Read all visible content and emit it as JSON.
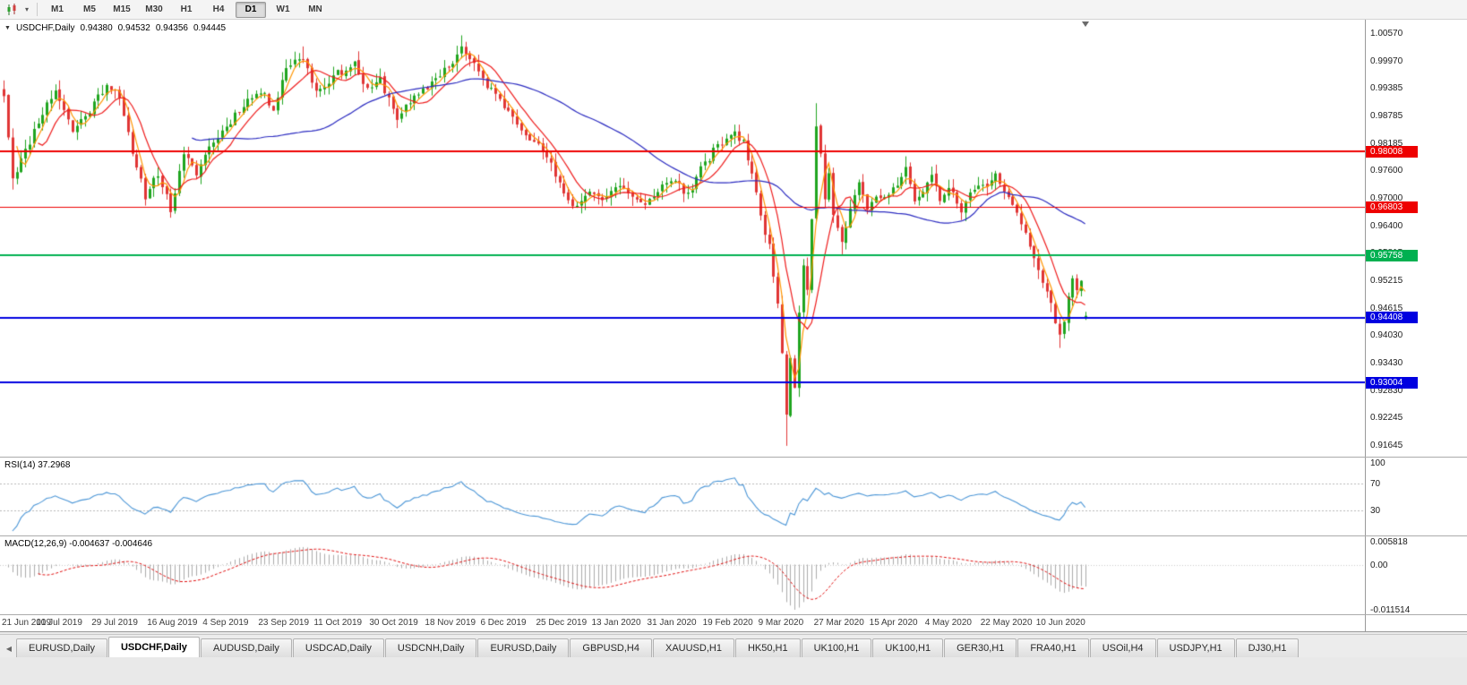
{
  "toolbar": {
    "chart_type_icon": "candlestick-chart-icon",
    "dropdown_icon": "chevron-down-icon",
    "timeframes": [
      "M1",
      "M5",
      "M15",
      "M30",
      "H1",
      "H4",
      "D1",
      "W1",
      "MN"
    ],
    "active_timeframe": "D1"
  },
  "quote_bar": {
    "collapse_icon": "triangle-down-icon",
    "symbol_label": "USDCHF,Daily",
    "open": "0.94380",
    "high": "0.94532",
    "low": "0.94356",
    "close": "0.94445"
  },
  "chart_data": {
    "type": "candlestick",
    "title": "USDCHF,Daily",
    "candles_total": 254,
    "ylim": [
      0.91395,
      1.0082
    ],
    "noise_seed": 11,
    "noise_amp": 0.0009,
    "colors": {
      "up": "#1fa51f",
      "down": "#e03535"
    },
    "close_anchors": [
      [
        0,
        0.9925
      ],
      [
        2,
        0.9745
      ],
      [
        5,
        0.98
      ],
      [
        8,
        0.9868
      ],
      [
        12,
        0.9935
      ],
      [
        16,
        0.9845
      ],
      [
        20,
        0.989
      ],
      [
        24,
        0.9948
      ],
      [
        27,
        0.9925
      ],
      [
        30,
        0.979
      ],
      [
        33,
        0.9705
      ],
      [
        36,
        0.9755
      ],
      [
        39,
        0.9675
      ],
      [
        42,
        0.979
      ],
      [
        45,
        0.9755
      ],
      [
        48,
        0.981
      ],
      [
        52,
        0.9855
      ],
      [
        56,
        0.9905
      ],
      [
        60,
        0.993
      ],
      [
        63,
        0.9895
      ],
      [
        66,
        0.9985
      ],
      [
        70,
        1.0005
      ],
      [
        73,
        0.993
      ],
      [
        76,
        0.9955
      ],
      [
        79,
        0.9975
      ],
      [
        82,
        0.999
      ],
      [
        85,
        0.993
      ],
      [
        88,
        0.9955
      ],
      [
        92,
        0.9875
      ],
      [
        95,
        0.9905
      ],
      [
        98,
        0.993
      ],
      [
        102,
        0.997
      ],
      [
        105,
        0.9995
      ],
      [
        107,
        1.0025
      ],
      [
        110,
        0.9985
      ],
      [
        113,
        0.9945
      ],
      [
        116,
        0.991
      ],
      [
        118,
        0.989
      ],
      [
        121,
        0.9855
      ],
      [
        124,
        0.982
      ],
      [
        127,
        0.979
      ],
      [
        131,
        0.9705
      ],
      [
        134,
        0.968
      ],
      [
        137,
        0.972
      ],
      [
        140,
        0.9695
      ],
      [
        144,
        0.973
      ],
      [
        147,
        0.97
      ],
      [
        150,
        0.968
      ],
      [
        153,
        0.972
      ],
      [
        157,
        0.974
      ],
      [
        160,
        0.9705
      ],
      [
        163,
        0.976
      ],
      [
        166,
        0.98
      ],
      [
        170,
        0.984
      ],
      [
        173,
        0.9825
      ],
      [
        175,
        0.975
      ],
      [
        177,
        0.966
      ],
      [
        179,
        0.9595
      ],
      [
        181,
        0.948
      ],
      [
        183,
        0.923
      ],
      [
        184,
        0.936
      ],
      [
        185,
        0.929
      ],
      [
        186,
        0.946
      ],
      [
        187,
        0.956
      ],
      [
        188,
        0.95
      ],
      [
        189,
        0.966
      ],
      [
        190,
        0.986
      ],
      [
        191,
        0.98
      ],
      [
        192,
        0.97
      ],
      [
        193,
        0.976
      ],
      [
        194,
        0.966
      ],
      [
        196,
        0.9605
      ],
      [
        198,
        0.968
      ],
      [
        200,
        0.9725
      ],
      [
        202,
        0.968
      ],
      [
        205,
        0.9705
      ],
      [
        209,
        0.9725
      ],
      [
        211,
        0.9765
      ],
      [
        213,
        0.9685
      ],
      [
        215,
        0.9715
      ],
      [
        217,
        0.9745
      ],
      [
        219,
        0.97
      ],
      [
        222,
        0.972
      ],
      [
        224,
        0.9665
      ],
      [
        226,
        0.9705
      ],
      [
        228,
        0.9735
      ],
      [
        230,
        0.9715
      ],
      [
        232,
        0.9745
      ],
      [
        235,
        0.9705
      ],
      [
        237,
        0.9665
      ],
      [
        239,
        0.9625
      ],
      [
        241,
        0.9565
      ],
      [
        243,
        0.952
      ],
      [
        245,
        0.947
      ],
      [
        247,
        0.9395
      ],
      [
        249,
        0.9485
      ],
      [
        250,
        0.952
      ],
      [
        251,
        0.9505
      ],
      [
        252,
        0.9515
      ],
      [
        253,
        0.94445
      ]
    ],
    "wick_overrides": [
      {
        "i": 2,
        "l": 0.9718
      },
      {
        "i": 39,
        "l": 0.9657
      },
      {
        "i": 70,
        "h": 1.0028
      },
      {
        "i": 107,
        "h": 1.0052
      },
      {
        "i": 183,
        "l": 0.9163
      },
      {
        "i": 190,
        "h": 0.9905
      },
      {
        "i": 196,
        "l": 0.9578
      },
      {
        "i": 211,
        "h": 0.979
      },
      {
        "i": 247,
        "l": 0.9375
      },
      {
        "i": 253,
        "o": 0.9438,
        "h": 0.94532,
        "l": 0.94356,
        "c": 0.94445
      }
    ],
    "moving_averages": [
      {
        "name": "MA fast",
        "period": 4,
        "color": "#ff9500"
      },
      {
        "name": "MA medium",
        "period": 9,
        "color": "#ee1c1c"
      },
      {
        "name": "MA slow",
        "period": 45,
        "color": "#2b2bc0"
      }
    ],
    "hlines": [
      {
        "price": 0.98008,
        "label": "0.98008",
        "color": "#ee0000",
        "width": 2
      },
      {
        "price": 0.96803,
        "label": "0.96803",
        "color": "#ee0000",
        "width": 1
      },
      {
        "price": 0.95758,
        "label": "0.95758",
        "color": "#00b050",
        "width": 2
      },
      {
        "price": 0.94408,
        "label": "0.94408",
        "color": "#0000e0",
        "width": 2
      },
      {
        "price": 0.93004,
        "label": "0.93004",
        "color": "#0000e0",
        "width": 2
      }
    ],
    "y_ticks": [
      "1.00570",
      "0.99970",
      "0.99385",
      "0.98785",
      "0.98185",
      "0.97600",
      "0.97000",
      "0.96400",
      "0.95815",
      "0.95215",
      "0.94615",
      "0.94030",
      "0.93430",
      "0.92830",
      "0.92245",
      "0.91645"
    ],
    "x_ticks": {
      "first_candle_index": 1,
      "step": 13,
      "labels": [
        "21 Jun 2019",
        "10 Jul 2019",
        "29 Jul 2019",
        "16 Aug 2019",
        "4 Sep 2019",
        "23 Sep 2019",
        "11 Oct 2019",
        "30 Oct 2019",
        "18 Nov 2019",
        "6 Dec 2019",
        "25 Dec 2019",
        "13 Jan 2020",
        "31 Jan 2020",
        "19 Feb 2020",
        "9 Mar 2020",
        "27 Mar 2020",
        "15 Apr 2020",
        "4 May 2020",
        "22 May 2020",
        "10 Jun 2020"
      ]
    },
    "rsi": {
      "value_label": "RSI(14) 37.2968",
      "period": 14,
      "levels": [
        70,
        30
      ],
      "axis_labels": [
        "100",
        "70",
        "30"
      ],
      "color": "#4a95d6"
    },
    "macd": {
      "value_label": "MACD(12,26,9) -0.004637 -0.004646",
      "fast": 12,
      "slow": 26,
      "signal": 9,
      "range": [
        -0.011514,
        0.005818
      ],
      "axis_labels": [
        "0.005818",
        "0.00",
        "-0.011514"
      ],
      "hist_color": "#ababab",
      "signal_color": "#e01010"
    }
  },
  "tabs": {
    "scroll_left_icon": "chevron-left-icon",
    "items": [
      {
        "label": "EURUSD,Daily",
        "active": false
      },
      {
        "label": "USDCHF,Daily",
        "active": true
      },
      {
        "label": "AUDUSD,Daily",
        "active": false
      },
      {
        "label": "USDCAD,Daily",
        "active": false
      },
      {
        "label": "USDCNH,Daily",
        "active": false
      },
      {
        "label": "EURUSD,Daily",
        "active": false
      },
      {
        "label": "GBPUSD,H4",
        "active": false
      },
      {
        "label": "XAUUSD,H1",
        "active": false
      },
      {
        "label": "HK50,H1",
        "active": false
      },
      {
        "label": "UK100,H1",
        "active": false
      },
      {
        "label": "UK100,H1",
        "active": false
      },
      {
        "label": "GER30,H1",
        "active": false
      },
      {
        "label": "FRA40,H1",
        "active": false
      },
      {
        "label": "USOil,H4",
        "active": false
      },
      {
        "label": "USDJPY,H1",
        "active": false
      },
      {
        "label": "DJ30,H1",
        "active": false
      }
    ]
  }
}
